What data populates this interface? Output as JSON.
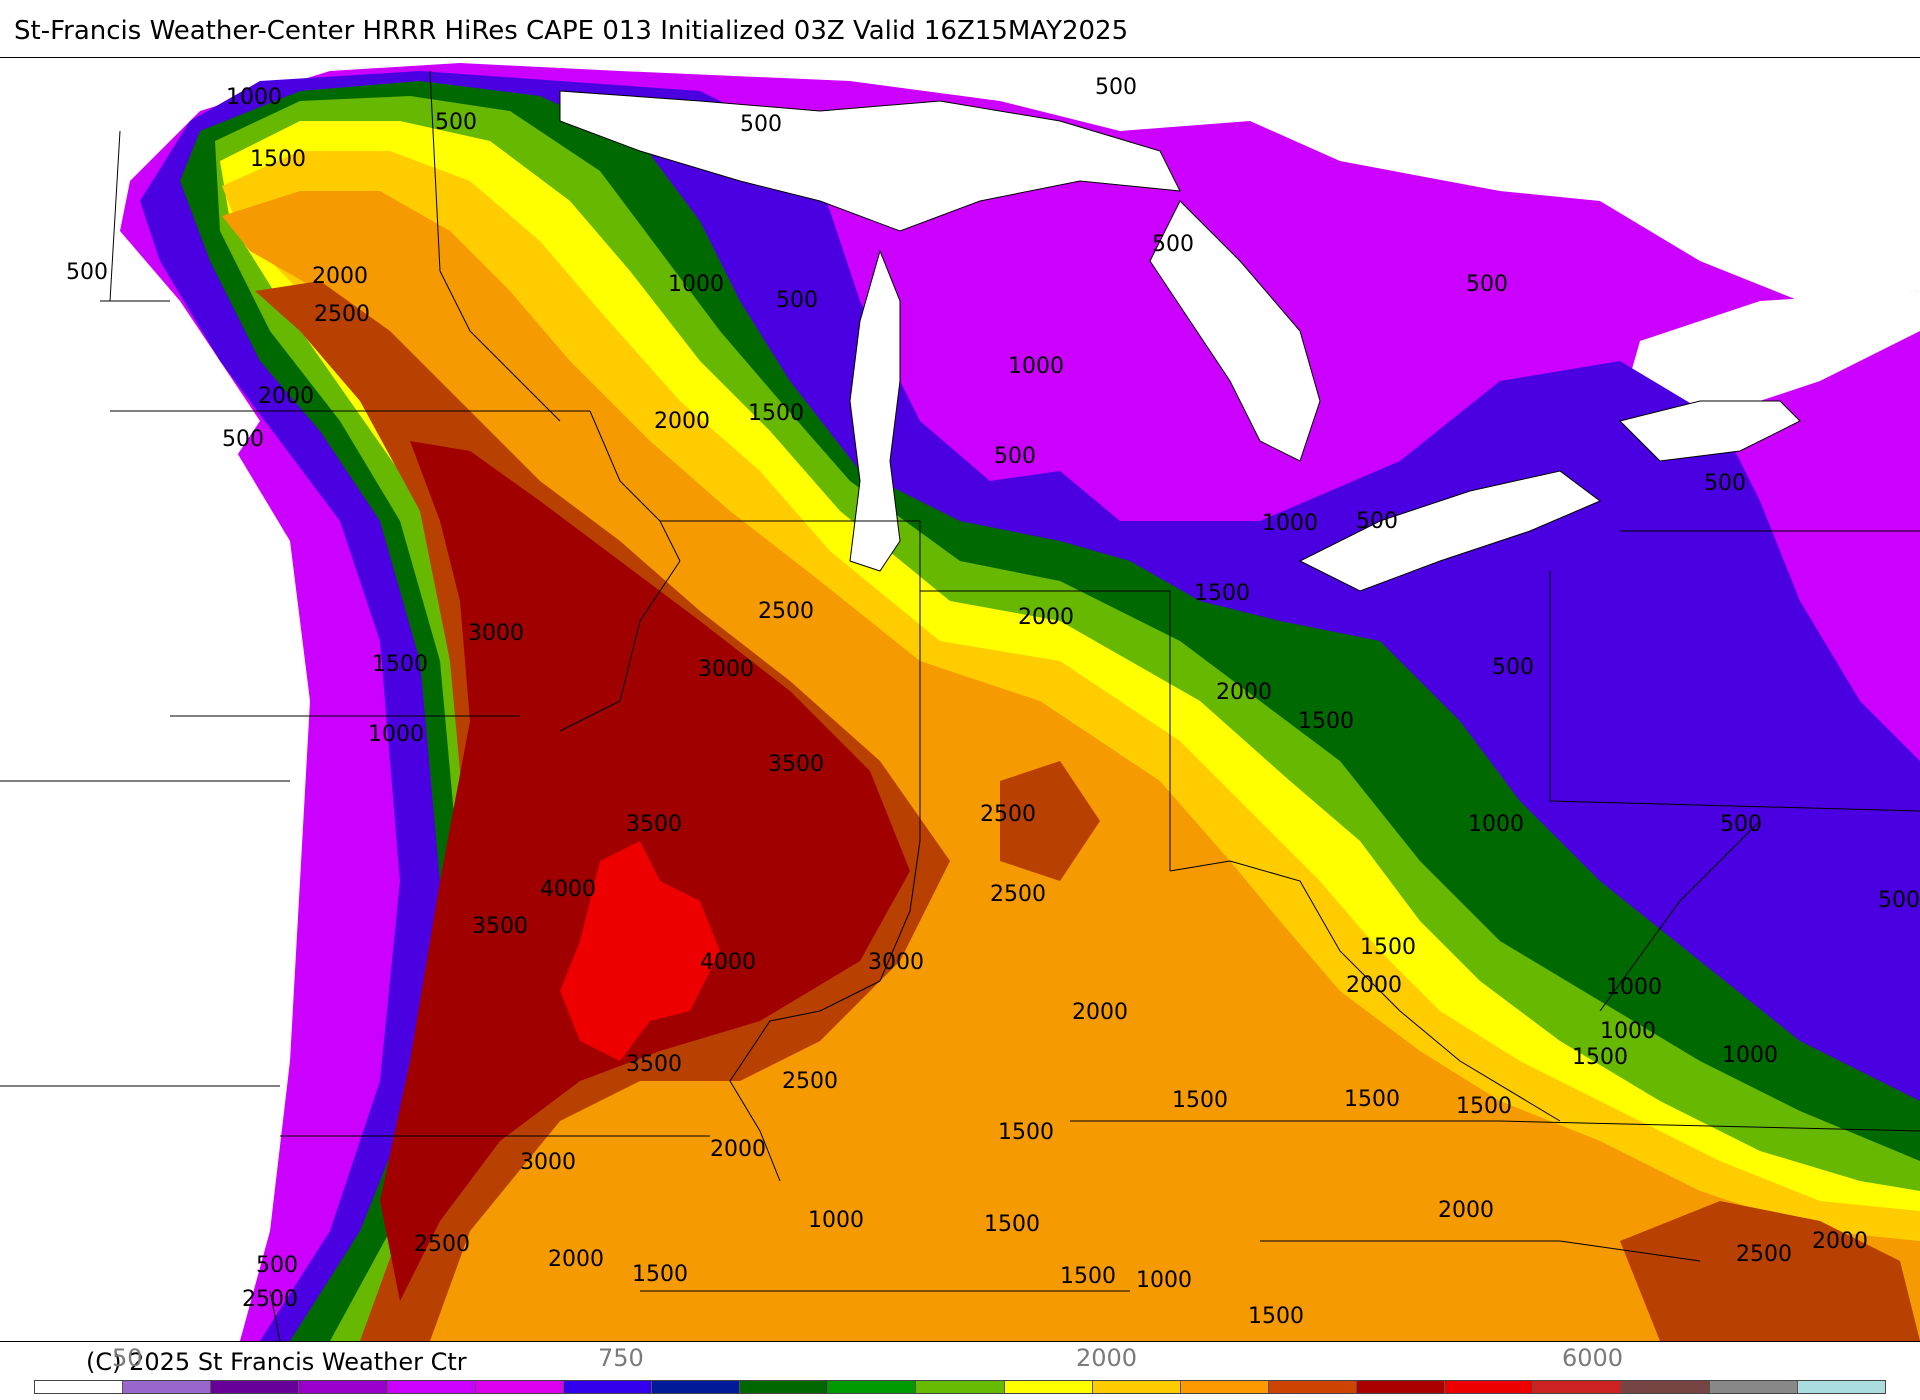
{
  "header": {
    "title": "St-Francis Weather-Center HRRR HiRes CAPE  013 Initialized  03Z Valid 16Z15MAY2025"
  },
  "footer": {
    "copyright": "(C) 2025 St Francis Weather Ctr"
  },
  "colorbar": {
    "visible_tick_labels": [
      "50",
      "750",
      "2000",
      "6000"
    ],
    "colors": [
      "#ffffff",
      "#9966cc",
      "#660099",
      "#9900cc",
      "#cc00ff",
      "#dd00ee",
      "#3300ee",
      "#001a99",
      "#006600",
      "#009900",
      "#66bb00",
      "#ffff00",
      "#ffcc00",
      "#ff9900",
      "#cc4400",
      "#aa0000",
      "#ee0000",
      "#cc2222",
      "#774444",
      "#888888",
      "#aadddd"
    ]
  },
  "map": {
    "fill_colors": {
      "none": "#ffffff",
      "c250": "#cc00ff",
      "c500": "#4a00e0",
      "c1000": "#006a00",
      "c1250": "#66b800",
      "c1500": "#ffff00",
      "c1750": "#ffcc00",
      "c2000": "#f59a00",
      "c2500": "#b84000",
      "c3000": "#a00000",
      "c4000": "#ee0000"
    },
    "contour_labels": [
      "1000",
      "500",
      "500",
      "500",
      "1500",
      "500",
      "2000",
      "2500",
      "1000",
      "500",
      "500",
      "500",
      "2000",
      "500",
      "1000",
      "2000",
      "1500",
      "500",
      "1000",
      "500",
      "2500",
      "1500",
      "2000",
      "3000",
      "3000",
      "1500",
      "500",
      "2000",
      "500",
      "1000",
      "3500",
      "1500",
      "2500",
      "3500",
      "1000",
      "500",
      "2500",
      "500",
      "4000",
      "3500",
      "4000",
      "3000",
      "1500",
      "2000",
      "2000",
      "1000",
      "1000",
      "1000",
      "3500",
      "2500",
      "1500",
      "1500",
      "1500",
      "1500",
      "1500",
      "3000",
      "2000",
      "2000",
      "1000",
      "1500",
      "1500",
      "2500",
      "2000",
      "500",
      "2500",
      "2000",
      "1500",
      "1000",
      "500",
      "2500",
      "1500"
    ]
  }
}
